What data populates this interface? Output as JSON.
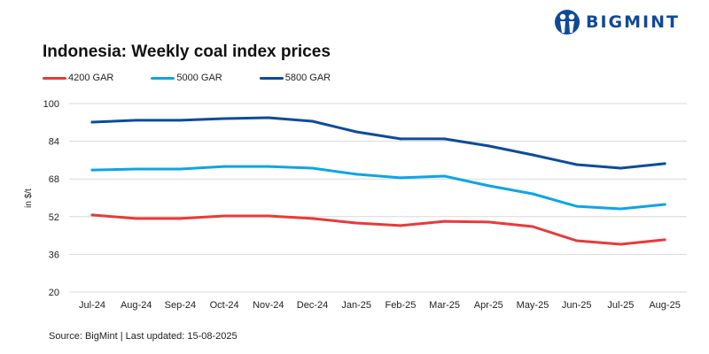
{
  "brand": {
    "name": "BIGMINT",
    "color": "#0f4a9a"
  },
  "source_text": "Source: BigMint | Last updated: 15-08-2025",
  "chart_data": {
    "type": "line",
    "title": "Indonesia: Weekly coal index prices",
    "xlabel": "",
    "ylabel": "in $/t",
    "ylim": [
      20,
      100
    ],
    "yticks": [
      20,
      36,
      52,
      68,
      84,
      100
    ],
    "grid": true,
    "legend_position": "top-left",
    "categories": [
      "Jul-24",
      "Aug-24",
      "Sep-24",
      "Oct-24",
      "Nov-24",
      "Dec-24",
      "Jan-25",
      "Feb-25",
      "Mar-25",
      "Apr-25",
      "May-25",
      "Jun-25",
      "Jul-25",
      "Aug-25"
    ],
    "series": [
      {
        "name": "4200 GAR",
        "color": "#e83a3a",
        "values": [
          52.7,
          51.2,
          51.2,
          52.3,
          52.3,
          51.2,
          49.3,
          48.2,
          50.0,
          49.7,
          47.8,
          41.8,
          40.3,
          42.2
        ]
      },
      {
        "name": "5000 GAR",
        "color": "#0ea5e3",
        "values": [
          71.8,
          72.2,
          72.2,
          73.3,
          73.3,
          72.6,
          70.0,
          68.5,
          69.2,
          65.1,
          61.7,
          56.4,
          55.3,
          57.2
        ]
      },
      {
        "name": "5800 GAR",
        "color": "#0b4c9c",
        "values": [
          92.1,
          92.9,
          92.9,
          93.6,
          94.0,
          92.5,
          88.0,
          85.0,
          85.0,
          82.0,
          78.2,
          74.1,
          72.6,
          74.5
        ]
      }
    ]
  }
}
